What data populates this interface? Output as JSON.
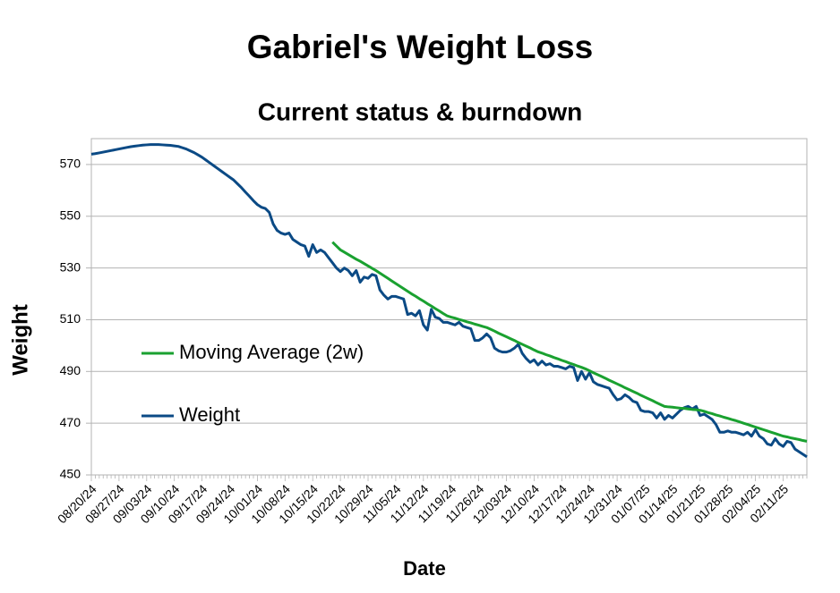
{
  "chart_data": {
    "type": "line",
    "title": "Gabriel's Weight Loss",
    "subtitle": "Current status & burndown",
    "x_label": "Date",
    "y_label": "Weight",
    "ylim": [
      450,
      580
    ],
    "yticks": [
      450,
      470,
      490,
      510,
      530,
      550,
      570
    ],
    "grid": true,
    "legend": "left",
    "categories": [
      "08/20/24",
      null,
      null,
      null,
      null,
      null,
      null,
      "08/27/24",
      null,
      null,
      null,
      null,
      null,
      null,
      "09/03/24",
      null,
      null,
      null,
      null,
      null,
      null,
      "09/10/24",
      null,
      null,
      null,
      null,
      null,
      null,
      "09/17/24",
      null,
      null,
      null,
      null,
      null,
      null,
      "09/24/24",
      null,
      null,
      null,
      null,
      null,
      null,
      "10/01/24",
      null,
      null,
      null,
      null,
      null,
      null,
      "10/08/24",
      null,
      null,
      null,
      null,
      null,
      null,
      "10/15/24",
      null,
      null,
      null,
      null,
      null,
      null,
      "10/22/24",
      null,
      null,
      null,
      null,
      null,
      null,
      "10/29/24",
      null,
      null,
      null,
      null,
      null,
      null,
      "11/05/24",
      null,
      null,
      null,
      null,
      null,
      null,
      "11/12/24",
      null,
      null,
      null,
      null,
      null,
      null,
      "11/19/24",
      null,
      null,
      null,
      null,
      null,
      null,
      "11/26/24",
      null,
      null,
      null,
      null,
      null,
      null,
      "12/03/24",
      null,
      null,
      null,
      null,
      null,
      null,
      "12/10/24",
      null,
      null,
      null,
      null,
      null,
      null,
      "12/17/24",
      null,
      null,
      null,
      null,
      null,
      null,
      "12/24/24",
      null,
      null,
      null,
      null,
      null,
      null,
      "12/31/24",
      null,
      null,
      null,
      null,
      null,
      null,
      "01/07/25",
      null,
      null,
      null,
      null,
      null,
      null,
      "01/14/25",
      null,
      null,
      null,
      null,
      null,
      null,
      "01/21/25",
      null,
      null,
      null,
      null,
      null,
      null,
      "01/28/25",
      null,
      null,
      null,
      null,
      null,
      null,
      "02/04/25",
      null,
      null,
      null,
      null,
      null,
      null,
      "02/11/25",
      null,
      null,
      null,
      null,
      null,
      null
    ],
    "series": [
      {
        "name": "Moving Average (2w)",
        "color": "#1aa130",
        "values": [
          null,
          null,
          null,
          null,
          null,
          null,
          null,
          null,
          null,
          null,
          null,
          null,
          null,
          null,
          null,
          null,
          null,
          null,
          null,
          null,
          null,
          null,
          null,
          null,
          null,
          null,
          null,
          null,
          null,
          null,
          null,
          null,
          null,
          null,
          null,
          null,
          null,
          null,
          null,
          null,
          null,
          null,
          null,
          null,
          null,
          null,
          null,
          null,
          null,
          null,
          null,
          null,
          null,
          null,
          null,
          null,
          null,
          null,
          null,
          null,
          null,
          540.0,
          538.5,
          537.0,
          536.1,
          535.2,
          534.3,
          533.4,
          532.6,
          531.7,
          530.8,
          529.9,
          529.0,
          528.0,
          527.0,
          526.0,
          525.0,
          524.0,
          523.0,
          522.0,
          521.0,
          520.0,
          519.1,
          518.1,
          517.2,
          516.2,
          515.3,
          514.3,
          513.4,
          512.4,
          511.5,
          511.0,
          510.6,
          510.1,
          509.7,
          509.2,
          508.8,
          508.3,
          507.9,
          507.4,
          507.0,
          506.3,
          505.6,
          504.8,
          504.1,
          503.4,
          502.7,
          502.0,
          501.2,
          500.5,
          499.8,
          499.1,
          498.3,
          497.6,
          497.1,
          496.5,
          496.0,
          495.4,
          494.9,
          494.3,
          493.8,
          493.2,
          492.7,
          492.1,
          491.6,
          491.0,
          490.3,
          489.5,
          488.8,
          488.1,
          487.4,
          486.6,
          485.9,
          485.2,
          484.5,
          483.7,
          483.0,
          482.3,
          481.6,
          480.8,
          480.1,
          479.4,
          478.7,
          477.9,
          477.2,
          476.5,
          476.3,
          476.2,
          476.0,
          475.8,
          475.7,
          475.5,
          475.3,
          475.2,
          475.0,
          474.6,
          474.1,
          473.7,
          473.2,
          472.8,
          472.3,
          471.9,
          471.4,
          471.0,
          470.5,
          470.0,
          469.5,
          469.0,
          468.5,
          468.0,
          467.5,
          467.0,
          466.5,
          466.0,
          465.5,
          465.0,
          464.7,
          464.3,
          464.0,
          463.7,
          463.3,
          463.0
        ]
      },
      {
        "name": "Weight",
        "color": "#0b4a85",
        "values": [
          574.0,
          574.2,
          574.5,
          574.8,
          575.1,
          575.4,
          575.7,
          576.0,
          576.3,
          576.6,
          576.9,
          577.1,
          577.3,
          577.5,
          577.6,
          577.7,
          577.7,
          577.7,
          577.6,
          577.5,
          577.4,
          577.2,
          577.0,
          576.5,
          576.0,
          575.3,
          574.6,
          573.7,
          572.8,
          571.7,
          570.6,
          569.5,
          568.4,
          567.3,
          566.2,
          565.1,
          564.0,
          562.5,
          561.0,
          559.3,
          557.7,
          556.0,
          554.5,
          553.5,
          553.0,
          551.5,
          547.0,
          544.5,
          543.5,
          543.0,
          543.5,
          541.0,
          540.0,
          539.0,
          538.5,
          534.5,
          539.0,
          536.0,
          537.0,
          536.0,
          534.0,
          532.0,
          530.0,
          528.6,
          530.0,
          529.0,
          527.0,
          529.0,
          524.5,
          526.5,
          526.0,
          527.5,
          527.0,
          521.5,
          519.5,
          518.0,
          519.0,
          519.0,
          518.5,
          518.0,
          512.0,
          512.5,
          511.5,
          513.5,
          508.0,
          506.0,
          514.0,
          511.0,
          510.5,
          509.0,
          509.0,
          508.5,
          508.0,
          509.0,
          507.5,
          507.0,
          506.5,
          502.0,
          502.0,
          503.0,
          504.5,
          503.0,
          499.0,
          498.0,
          497.5,
          497.5,
          498.0,
          499.0,
          500.5,
          497.0,
          495.0,
          493.5,
          494.5,
          492.5,
          494.0,
          492.5,
          493.0,
          492.0,
          492.0,
          491.5,
          491.0,
          492.0,
          491.5,
          486.5,
          490.0,
          487.0,
          489.5,
          486.0,
          485.0,
          484.5,
          484.0,
          483.5,
          481.0,
          479.0,
          479.5,
          481.0,
          480.0,
          478.5,
          478.0,
          475.0,
          474.5,
          474.5,
          474.0,
          472.0,
          474.0,
          471.5,
          473.0,
          472.0,
          473.5,
          475.0,
          476.0,
          476.5,
          475.5,
          476.5,
          473.0,
          473.5,
          472.5,
          471.5,
          469.5,
          466.5,
          466.5,
          467.0,
          466.5,
          466.5,
          466.0,
          465.5,
          466.5,
          465.0,
          467.5,
          465.0,
          464.0,
          462.0,
          461.5,
          464.0,
          462.0,
          461.0,
          463.0,
          462.5,
          460.0,
          459.0,
          458.0,
          457.0
        ]
      }
    ]
  }
}
